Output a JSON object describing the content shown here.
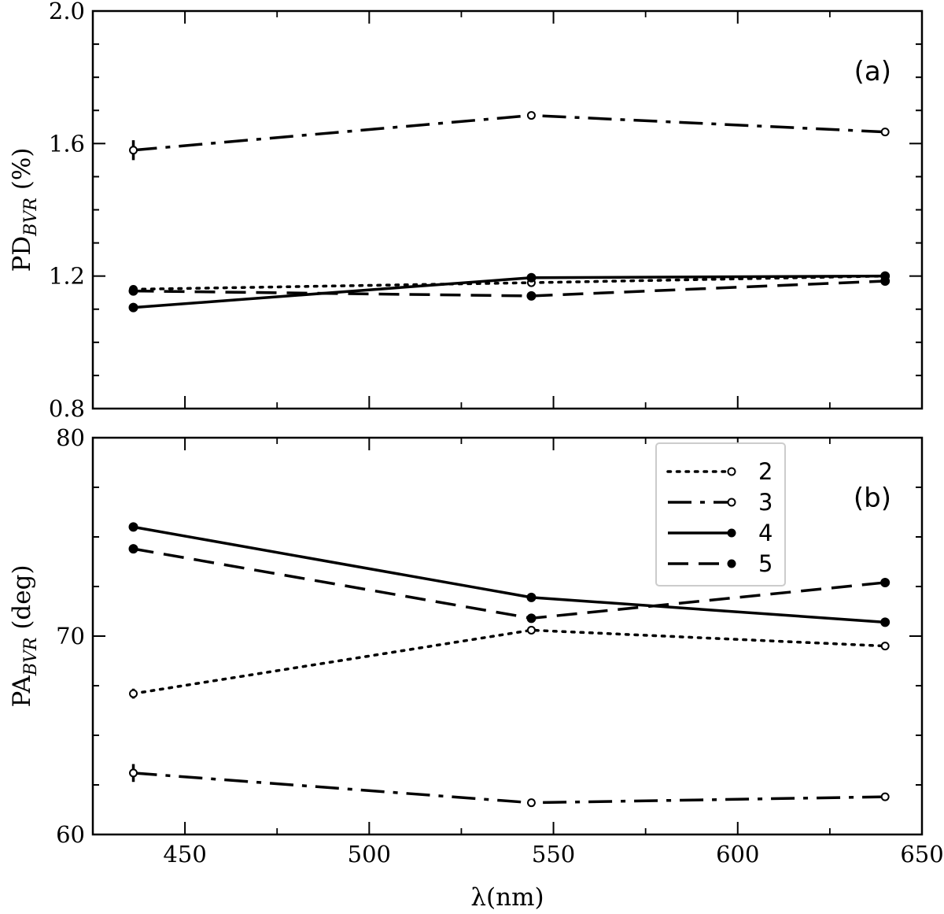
{
  "chart_data": [
    {
      "type": "line",
      "panel_label": "(a)",
      "ylabel_main": "PD",
      "ylabel_sub": "BVR",
      "ylabel_unit": "(%)",
      "xlim": [
        425,
        650
      ],
      "ylim": [
        0.8,
        2.0
      ],
      "yticks": [
        0.8,
        1.2,
        1.6,
        2.0
      ],
      "ytick_labels": [
        "0.8",
        "1.2",
        "1.6",
        "2.0"
      ],
      "x": [
        436,
        544,
        640
      ],
      "series": [
        {
          "name": "2",
          "values": [
            1.16,
            1.18,
            1.2
          ],
          "errors": [
            0.01,
            0,
            0
          ],
          "style": "dotted",
          "marker": "open"
        },
        {
          "name": "3",
          "values": [
            1.58,
            1.685,
            1.635
          ],
          "errors": [
            0.03,
            0,
            0
          ],
          "style": "dashdot",
          "marker": "open"
        },
        {
          "name": "4",
          "values": [
            1.105,
            1.195,
            1.2
          ],
          "errors": [
            0,
            0,
            0
          ],
          "style": "solid",
          "marker": "filled"
        },
        {
          "name": "5",
          "values": [
            1.155,
            1.14,
            1.185
          ],
          "errors": [
            0.01,
            0,
            0
          ],
          "style": "dashed",
          "marker": "filled"
        }
      ]
    },
    {
      "type": "line",
      "panel_label": "(b)",
      "ylabel_main": "PA",
      "ylabel_sub": "BVR",
      "ylabel_unit": "(deg)",
      "xlabel": "λ(nm)",
      "xlim": [
        425,
        650
      ],
      "ylim": [
        60,
        80
      ],
      "yticks": [
        60,
        70,
        80
      ],
      "ytick_labels": [
        "60",
        "70",
        "80"
      ],
      "xticks": [
        450,
        500,
        550,
        600,
        650
      ],
      "xtick_labels": [
        "450",
        "500",
        "550",
        "600",
        "650"
      ],
      "x": [
        436,
        544,
        640
      ],
      "series": [
        {
          "name": "2",
          "values": [
            67.1,
            70.3,
            69.5
          ],
          "errors": [
            0.25,
            0,
            0
          ],
          "style": "dotted",
          "marker": "open"
        },
        {
          "name": "3",
          "values": [
            63.1,
            61.6,
            61.9
          ],
          "errors": [
            0.45,
            0,
            0
          ],
          "style": "dashdot",
          "marker": "open"
        },
        {
          "name": "4",
          "values": [
            75.5,
            71.95,
            70.7
          ],
          "errors": [
            0,
            0,
            0
          ],
          "style": "solid",
          "marker": "filled"
        },
        {
          "name": "5",
          "values": [
            74.4,
            70.9,
            72.7
          ],
          "errors": [
            0,
            0,
            0
          ],
          "style": "dashed",
          "marker": "filled"
        }
      ],
      "legend": {
        "placement": "top-right",
        "entries": [
          "2",
          "3",
          "4",
          "5"
        ]
      }
    }
  ]
}
